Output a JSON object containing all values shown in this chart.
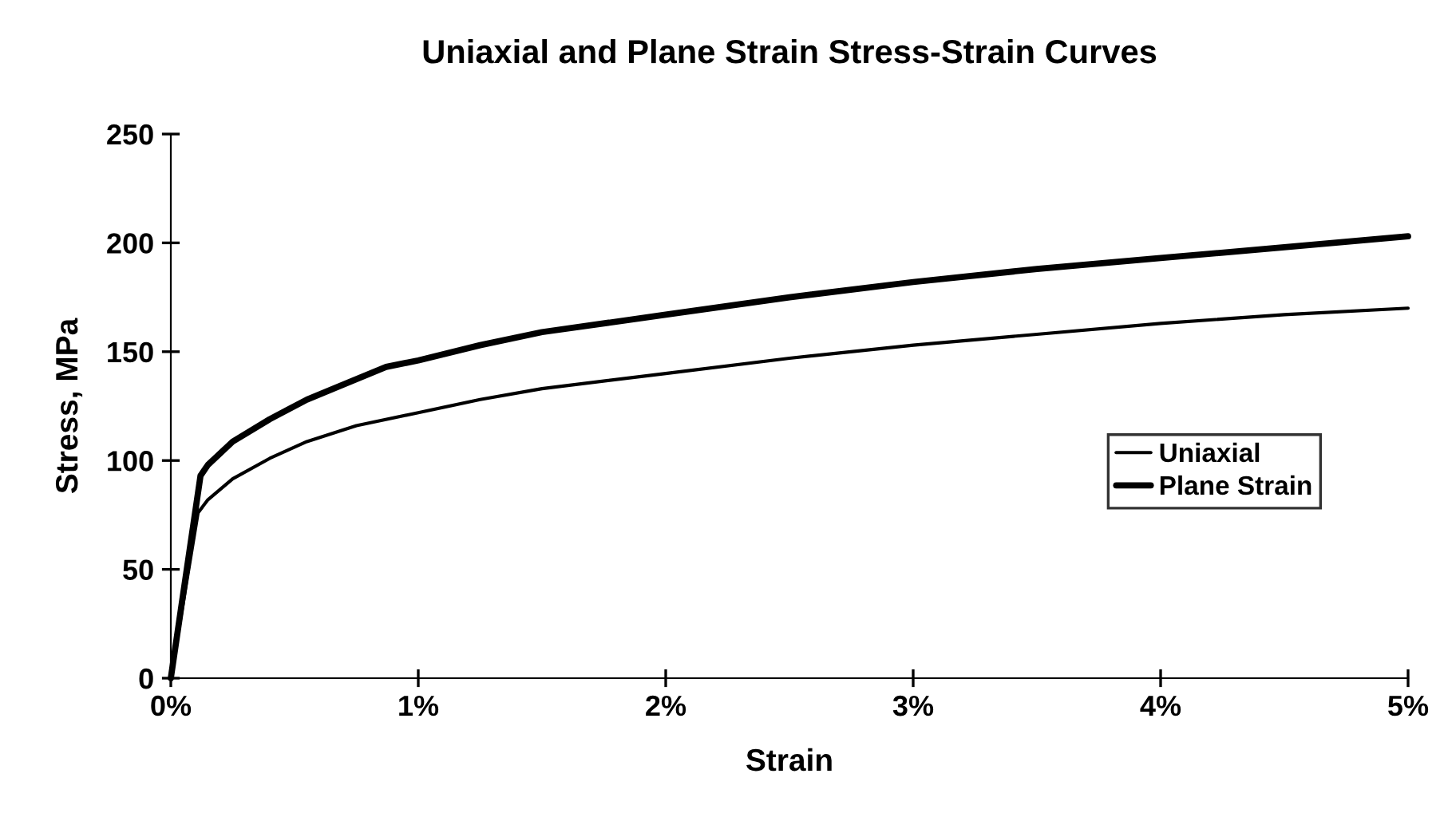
{
  "chart_data": {
    "type": "line",
    "title": "Uniaxial and Plane Strain Stress-Strain Curves",
    "xlabel": "Strain",
    "ylabel": "Stress, MPa",
    "series": [
      {
        "name": "Uniaxial",
        "color": "#000000",
        "x": [
          0,
          0.11,
          0.15,
          0.25,
          0.4,
          0.55,
          0.75,
          1.0,
          1.25,
          1.5,
          2.0,
          2.5,
          3.0,
          3.5,
          4.0,
          4.5,
          5.0
        ],
        "values": [
          0,
          76,
          82,
          91.6,
          101,
          108.7,
          116,
          122,
          128,
          133,
          140,
          147,
          153,
          158,
          163,
          167,
          170
        ]
      },
      {
        "name": "Plane Strain",
        "color": "#000000",
        "x": [
          0,
          0.12,
          0.15,
          0.25,
          0.4,
          0.55,
          0.7,
          0.87,
          1.0,
          1.25,
          1.5,
          2.0,
          2.5,
          3.0,
          3.5,
          4.0,
          4.5,
          5.0
        ],
        "values": [
          0,
          93,
          98,
          108.7,
          119,
          128,
          135,
          143,
          146,
          153,
          159,
          167,
          175,
          182,
          188,
          193,
          198,
          203
        ]
      }
    ],
    "xlim": [
      0,
      5
    ],
    "xticks": [
      {
        "value": 0,
        "label": "0%"
      },
      {
        "value": 1,
        "label": "1%"
      },
      {
        "value": 2,
        "label": "2%"
      },
      {
        "value": 3,
        "label": "3%"
      },
      {
        "value": 4,
        "label": "4%"
      },
      {
        "value": 5,
        "label": "5%"
      }
    ],
    "ylim": [
      0,
      250
    ],
    "yticks": [
      0,
      50,
      100,
      150,
      200,
      250
    ],
    "legend": "right",
    "marker": "none",
    "line_style": "solid"
  }
}
